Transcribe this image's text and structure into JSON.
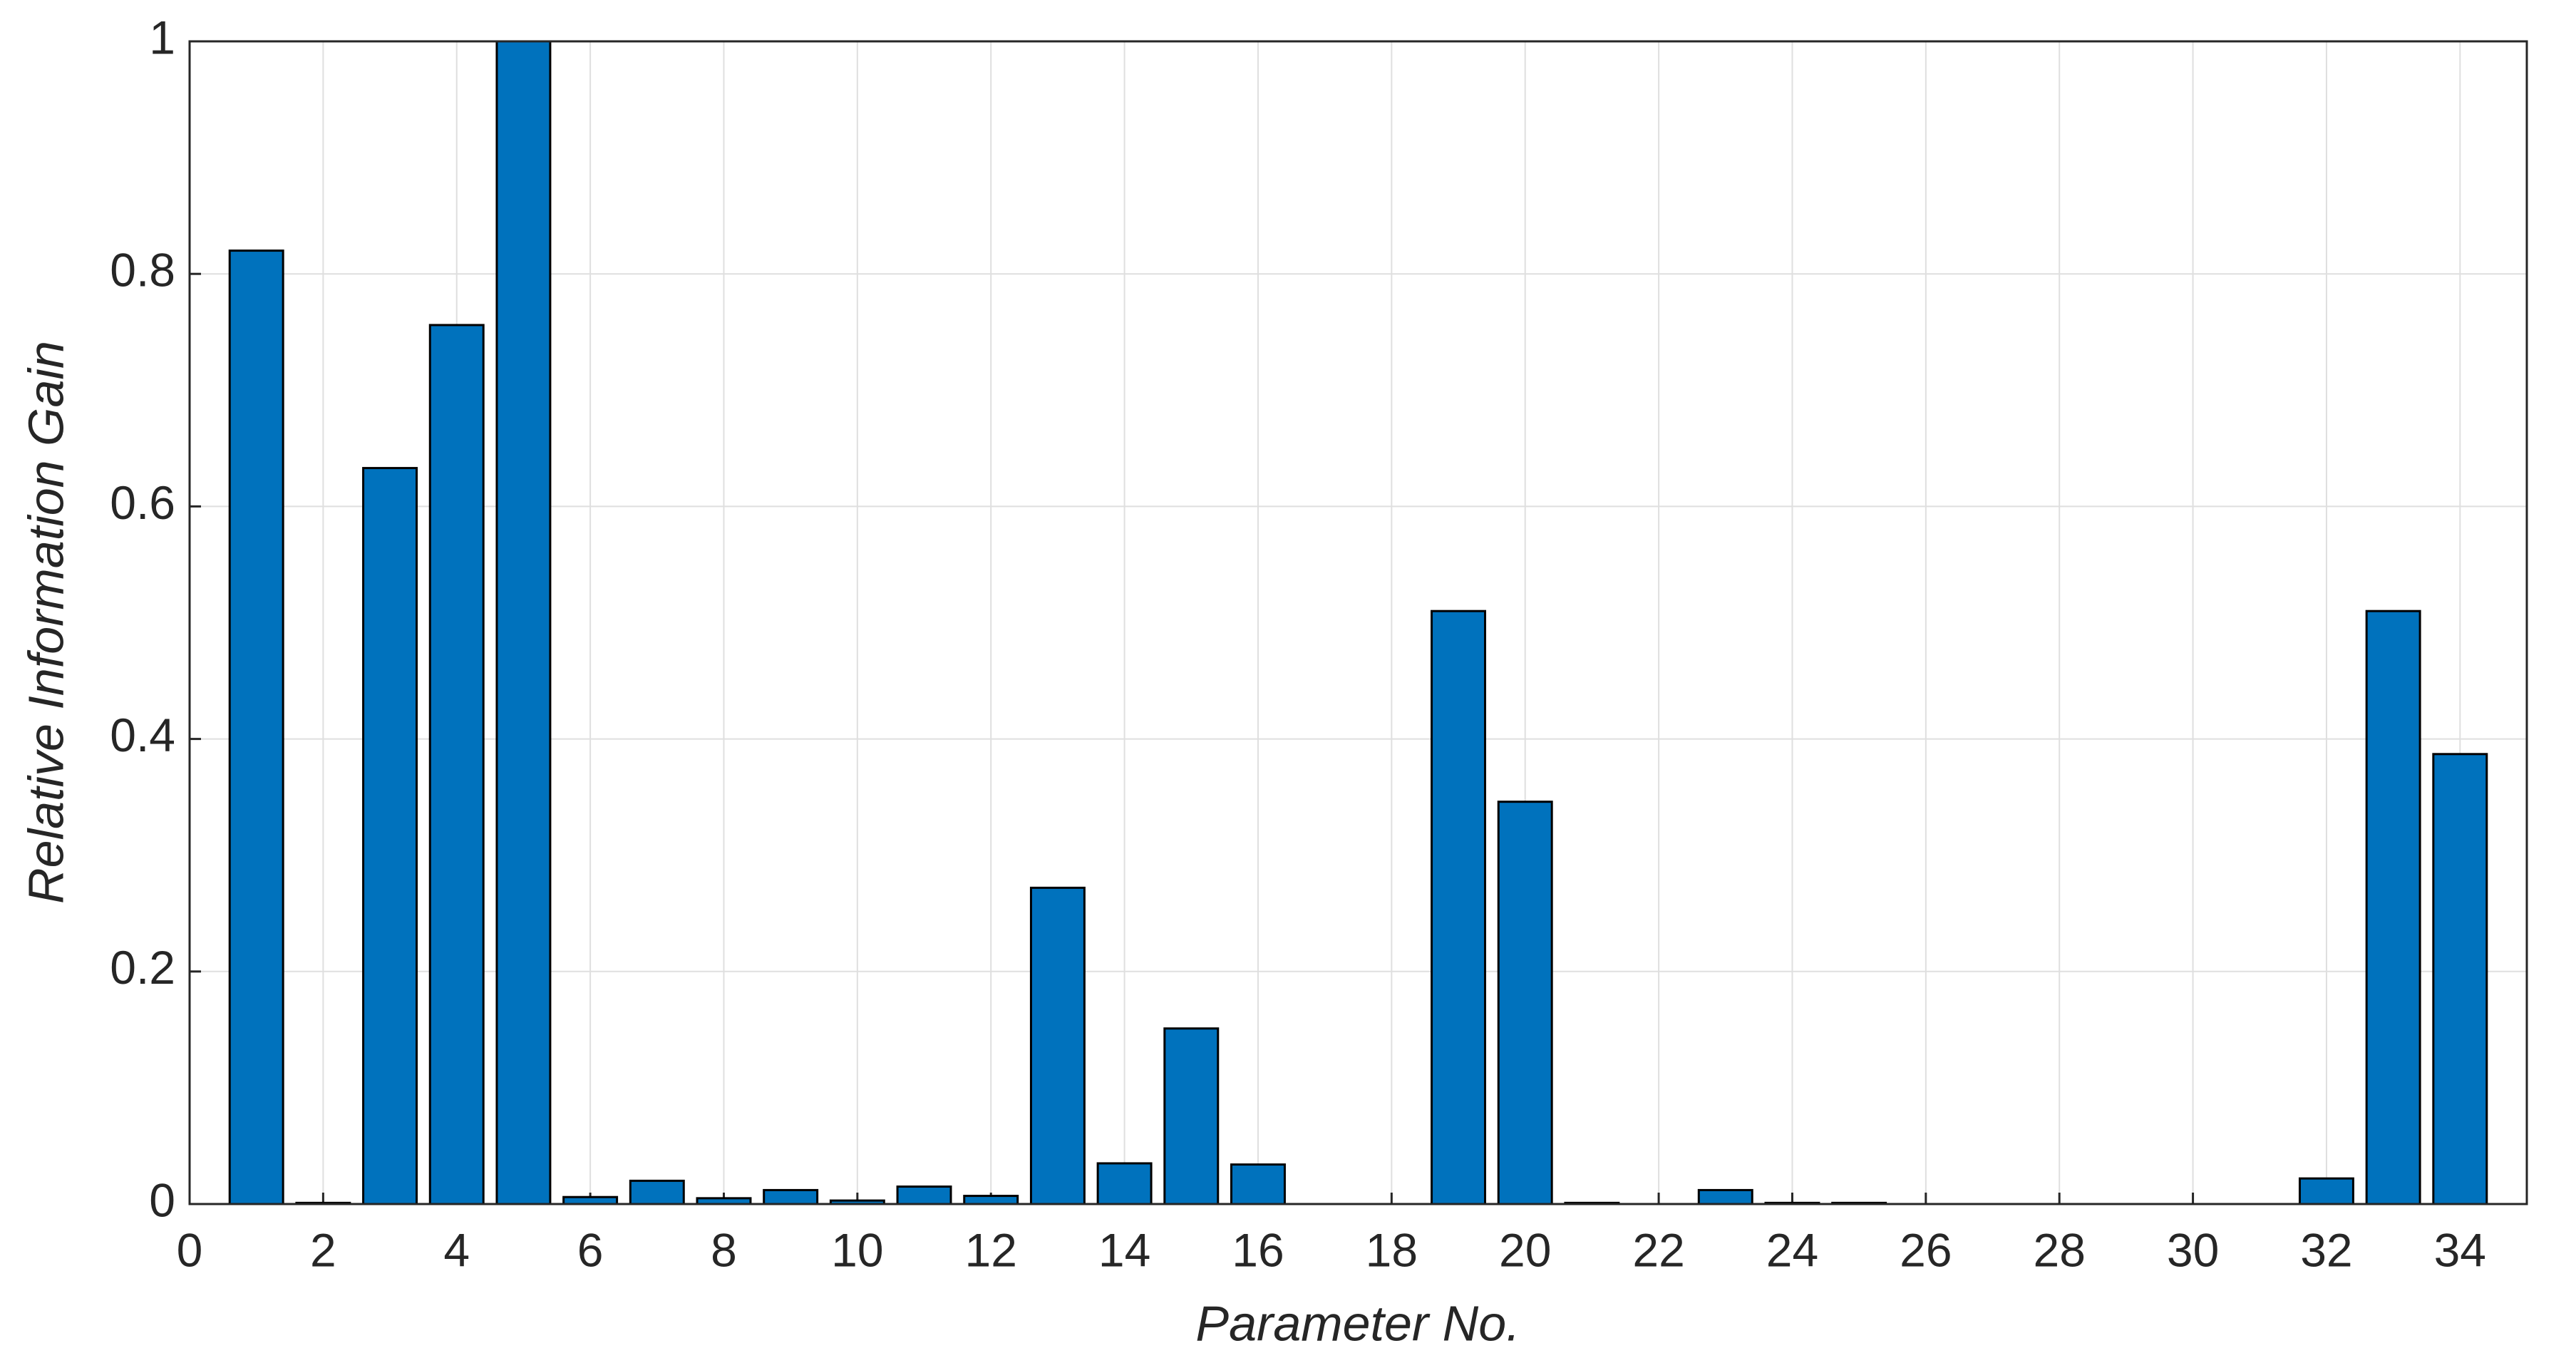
{
  "chart_data": {
    "type": "bar",
    "xlabel": "Parameter No.",
    "ylabel": "Relative Information Gain",
    "x": [
      1,
      2,
      3,
      4,
      5,
      6,
      7,
      8,
      9,
      10,
      11,
      12,
      13,
      14,
      15,
      16,
      17,
      18,
      19,
      20,
      21,
      22,
      23,
      24,
      25,
      26,
      27,
      28,
      29,
      30,
      31,
      32,
      33,
      34
    ],
    "values": [
      0.82,
      0.001,
      0.633,
      0.756,
      1.0,
      0.006,
      0.02,
      0.005,
      0.012,
      0.003,
      0.015,
      0.007,
      0.272,
      0.035,
      0.151,
      0.034,
      0,
      0,
      0.51,
      0.346,
      0.001,
      0,
      0.012,
      0.001,
      0.001,
      0,
      0,
      0,
      0,
      0,
      0,
      0.022,
      0.51,
      0.387
    ],
    "color": "#0072bd",
    "xlim": [
      0,
      35
    ],
    "xticks": [
      0,
      2,
      4,
      6,
      8,
      10,
      12,
      14,
      16,
      18,
      20,
      22,
      24,
      26,
      28,
      30,
      32,
      34
    ],
    "ylim": [
      0,
      1
    ],
    "yticks": [
      0,
      0.2,
      0.4,
      0.6,
      0.8,
      1
    ],
    "grid": true
  }
}
